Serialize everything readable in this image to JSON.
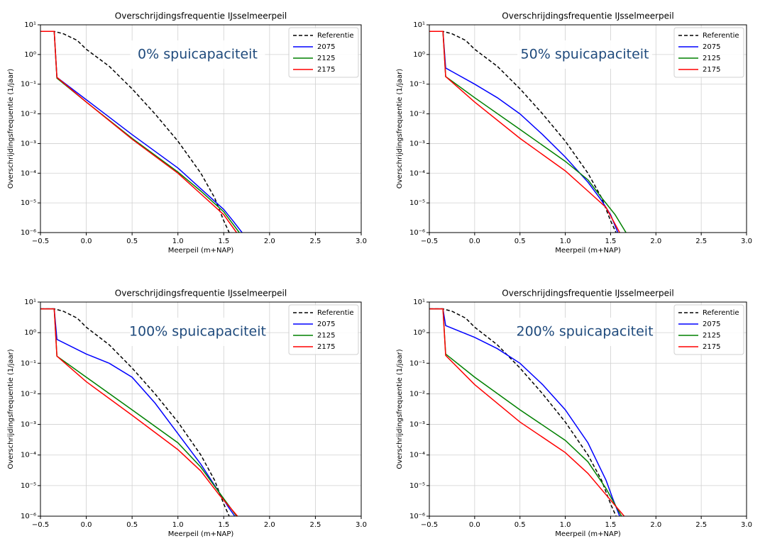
{
  "chart_data": [
    {
      "type": "line",
      "title": "Overschrijdingsfrequentie IJsselmeerpeil",
      "annotation": "0% spuicapaciteit",
      "xlabel": "Meerpeil (m+NAP)",
      "ylabel": "Overschrijdingsfrequentie (1/jaar)",
      "log_y": true,
      "grid": true,
      "legend": "upper right",
      "xlim": [
        -0.5,
        3.0
      ],
      "ylim": [
        1e-06,
        10
      ],
      "xticks": [
        {
          "value": -0.5,
          "label": "−0.5"
        },
        {
          "value": 0,
          "label": "0.0"
        },
        0.5,
        {
          "value": 1,
          "label": "1.0"
        },
        1.5,
        {
          "value": 2,
          "label": "2.0"
        },
        2.5,
        {
          "value": 3,
          "label": "3.0"
        }
      ],
      "yticks": [
        {
          "value": 1e-06,
          "label": "10⁻⁶"
        },
        {
          "value": 1e-05,
          "label": "10⁻⁵"
        },
        {
          "value": 0.0001,
          "label": "10⁻⁴"
        },
        {
          "value": 0.001,
          "label": "10⁻³"
        },
        {
          "value": 0.01,
          "label": "10⁻²"
        },
        {
          "value": 0.1,
          "label": "10⁻¹"
        },
        {
          "value": 1,
          "label": "10⁰"
        },
        {
          "value": 10,
          "label": "10¹"
        }
      ],
      "series": [
        {
          "name": "Referentie",
          "color": "#000000",
          "dashed": true,
          "x": [
            -0.5,
            -0.35,
            -0.25,
            -0.1,
            0,
            0.25,
            0.5,
            0.75,
            1.0,
            1.25,
            1.4,
            1.5,
            1.56
          ],
          "values": [
            6,
            6,
            5,
            3,
            1.5,
            0.4,
            0.07,
            0.01,
            0.0012,
            0.0001,
            1.5e-05,
            2.5e-06,
            1e-06
          ]
        },
        {
          "name": "2075",
          "color": "#0000ff",
          "x": [
            -0.5,
            -0.35,
            -0.32,
            0,
            0.5,
            1.0,
            1.25,
            1.5,
            1.6,
            1.7
          ],
          "values": [
            6,
            6,
            0.17,
            0.03,
            0.002,
            0.00015,
            3e-05,
            6e-06,
            2.5e-06,
            1e-06
          ]
        },
        {
          "name": "2125",
          "color": "#008000",
          "x": [
            -0.5,
            -0.35,
            -0.32,
            0,
            0.5,
            1.0,
            1.25,
            1.5,
            1.67
          ],
          "values": [
            6,
            6,
            0.16,
            0.025,
            0.0015,
            0.00011,
            2.5e-05,
            5e-06,
            1e-06
          ]
        },
        {
          "name": "2175",
          "color": "#ff0000",
          "x": [
            -0.5,
            -0.35,
            -0.32,
            0,
            0.5,
            1.0,
            1.25,
            1.5,
            1.64
          ],
          "values": [
            6,
            6,
            0.17,
            0.025,
            0.0014,
            0.0001,
            2e-05,
            4e-06,
            1e-06
          ]
        }
      ]
    },
    {
      "type": "line",
      "title": "Overschrijdingsfrequentie IJsselmeerpeil",
      "annotation": "50% spuicapaciteit",
      "xlabel": "Meerpeil (m+NAP)",
      "ylabel": "Overschrijdingsfrequentie (1/jaar)",
      "log_y": true,
      "grid": true,
      "legend": "upper right",
      "xlim": [
        -0.5,
        3.0
      ],
      "ylim": [
        1e-06,
        10
      ],
      "xticks": [
        {
          "value": -0.5,
          "label": "−0.5"
        },
        {
          "value": 0,
          "label": "0.0"
        },
        0.5,
        {
          "value": 1,
          "label": "1.0"
        },
        1.5,
        {
          "value": 2,
          "label": "2.0"
        },
        2.5,
        {
          "value": 3,
          "label": "3.0"
        }
      ],
      "yticks": [
        {
          "value": 1e-06,
          "label": "10⁻⁶"
        },
        {
          "value": 1e-05,
          "label": "10⁻⁵"
        },
        {
          "value": 0.0001,
          "label": "10⁻⁴"
        },
        {
          "value": 0.001,
          "label": "10⁻³"
        },
        {
          "value": 0.01,
          "label": "10⁻²"
        },
        {
          "value": 0.1,
          "label": "10⁻¹"
        },
        {
          "value": 1,
          "label": "10⁰"
        },
        {
          "value": 10,
          "label": "10¹"
        }
      ],
      "series": [
        {
          "name": "Referentie",
          "color": "#000000",
          "dashed": true,
          "x": [
            -0.5,
            -0.35,
            -0.25,
            -0.1,
            0,
            0.25,
            0.5,
            0.75,
            1.0,
            1.25,
            1.4,
            1.5,
            1.56
          ],
          "values": [
            6,
            6,
            5,
            3,
            1.5,
            0.4,
            0.07,
            0.01,
            0.0012,
            0.0001,
            1.5e-05,
            2.5e-06,
            1e-06
          ]
        },
        {
          "name": "2075",
          "color": "#0000ff",
          "x": [
            -0.5,
            -0.35,
            -0.32,
            0,
            0.25,
            0.5,
            0.75,
            1.0,
            1.25,
            1.4,
            1.5,
            1.58
          ],
          "values": [
            6,
            6,
            0.35,
            0.1,
            0.035,
            0.01,
            0.002,
            0.00035,
            5e-05,
            1.2e-05,
            4e-06,
            1e-06
          ]
        },
        {
          "name": "2125",
          "color": "#008000",
          "x": [
            -0.5,
            -0.35,
            -0.32,
            0,
            0.5,
            1.0,
            1.25,
            1.4,
            1.55,
            1.67
          ],
          "values": [
            6,
            6,
            0.18,
            0.035,
            0.003,
            0.00025,
            6e-05,
            1.5e-05,
            4e-06,
            1e-06
          ]
        },
        {
          "name": "2175",
          "color": "#ff0000",
          "x": [
            -0.5,
            -0.35,
            -0.32,
            0,
            0.5,
            1.0,
            1.25,
            1.45,
            1.6
          ],
          "values": [
            6,
            6,
            0.18,
            0.025,
            0.0015,
            0.00012,
            2.5e-05,
            7e-06,
            1e-06
          ]
        }
      ]
    },
    {
      "type": "line",
      "title": "Overschrijdingsfrequentie IJsselmeerpeil",
      "annotation": "100% spuicapaciteit",
      "xlabel": "Meerpeil (m+NAP)",
      "ylabel": "Overschrijdingsfrequentie (1/jaar)",
      "log_y": true,
      "grid": true,
      "legend": "upper right",
      "xlim": [
        -0.5,
        3.0
      ],
      "ylim": [
        1e-06,
        10
      ],
      "xticks": [
        {
          "value": -0.5,
          "label": "−0.5"
        },
        {
          "value": 0,
          "label": "0.0"
        },
        0.5,
        {
          "value": 1,
          "label": "1.0"
        },
        1.5,
        {
          "value": 2,
          "label": "2.0"
        },
        2.5,
        {
          "value": 3,
          "label": "3.0"
        }
      ],
      "yticks": [
        {
          "value": 1e-06,
          "label": "10⁻⁶"
        },
        {
          "value": 1e-05,
          "label": "10⁻⁵"
        },
        {
          "value": 0.0001,
          "label": "10⁻⁴"
        },
        {
          "value": 0.001,
          "label": "10⁻³"
        },
        {
          "value": 0.01,
          "label": "10⁻²"
        },
        {
          "value": 0.1,
          "label": "10⁻¹"
        },
        {
          "value": 1,
          "label": "10⁰"
        },
        {
          "value": 10,
          "label": "10¹"
        }
      ],
      "series": [
        {
          "name": "Referentie",
          "color": "#000000",
          "dashed": true,
          "x": [
            -0.5,
            -0.35,
            -0.25,
            -0.1,
            0,
            0.25,
            0.5,
            0.75,
            1.0,
            1.25,
            1.4,
            1.5,
            1.56
          ],
          "values": [
            6,
            6,
            5,
            3,
            1.5,
            0.4,
            0.07,
            0.01,
            0.0012,
            0.0001,
            1.5e-05,
            2.5e-06,
            1e-06
          ]
        },
        {
          "name": "2075",
          "color": "#0000ff",
          "x": [
            -0.5,
            -0.35,
            -0.32,
            0,
            0.25,
            0.5,
            0.75,
            1.0,
            1.25,
            1.45,
            1.55,
            1.62
          ],
          "values": [
            6,
            6,
            0.6,
            0.2,
            0.1,
            0.035,
            0.005,
            0.0005,
            5e-05,
            6e-06,
            2e-06,
            1e-06
          ]
        },
        {
          "name": "2125",
          "color": "#008000",
          "x": [
            -0.5,
            -0.35,
            -0.32,
            0,
            0.5,
            1.0,
            1.25,
            1.45,
            1.64
          ],
          "values": [
            6,
            6,
            0.17,
            0.035,
            0.003,
            0.00025,
            4e-05,
            6e-06,
            1e-06
          ]
        },
        {
          "name": "2175",
          "color": "#ff0000",
          "x": [
            -0.5,
            -0.35,
            -0.32,
            0,
            0.5,
            1.0,
            1.25,
            1.45,
            1.65
          ],
          "values": [
            6,
            6,
            0.17,
            0.025,
            0.002,
            0.00015,
            3e-05,
            5e-06,
            1e-06
          ]
        }
      ]
    },
    {
      "type": "line",
      "title": "Overschrijdingsfrequentie IJsselmeerpeil",
      "annotation": "200% spuicapaciteit",
      "xlabel": "Meerpeil (m+NAP)",
      "ylabel": "Overschrijdingsfrequentie (1/jaar)",
      "log_y": true,
      "grid": true,
      "legend": "upper right",
      "xlim": [
        -0.5,
        3.0
      ],
      "ylim": [
        1e-06,
        10
      ],
      "xticks": [
        {
          "value": -0.5,
          "label": "−0.5"
        },
        {
          "value": 0,
          "label": "0.0"
        },
        0.5,
        {
          "value": 1,
          "label": "1.0"
        },
        1.5,
        {
          "value": 2,
          "label": "2.0"
        },
        2.5,
        {
          "value": 3,
          "label": "3.0"
        }
      ],
      "yticks": [
        {
          "value": 1e-06,
          "label": "10⁻⁶"
        },
        {
          "value": 1e-05,
          "label": "10⁻⁵"
        },
        {
          "value": 0.0001,
          "label": "10⁻⁴"
        },
        {
          "value": 0.001,
          "label": "10⁻³"
        },
        {
          "value": 0.01,
          "label": "10⁻²"
        },
        {
          "value": 0.1,
          "label": "10⁻¹"
        },
        {
          "value": 1,
          "label": "10⁰"
        },
        {
          "value": 10,
          "label": "10¹"
        }
      ],
      "series": [
        {
          "name": "Referentie",
          "color": "#000000",
          "dashed": true,
          "x": [
            -0.5,
            -0.35,
            -0.25,
            -0.1,
            0,
            0.25,
            0.5,
            0.75,
            1.0,
            1.25,
            1.4,
            1.5,
            1.56
          ],
          "values": [
            6,
            6,
            5,
            3,
            1.5,
            0.4,
            0.07,
            0.01,
            0.0012,
            0.0001,
            1.5e-05,
            2.5e-06,
            1e-06
          ]
        },
        {
          "name": "2075",
          "color": "#0000ff",
          "x": [
            -0.5,
            -0.35,
            -0.32,
            0,
            0.25,
            0.5,
            0.75,
            1.0,
            1.25,
            1.45,
            1.52,
            1.6
          ],
          "values": [
            6,
            6,
            1.7,
            0.7,
            0.3,
            0.1,
            0.02,
            0.003,
            0.00025,
            1.5e-05,
            4e-06,
            1e-06
          ]
        },
        {
          "name": "2125",
          "color": "#008000",
          "x": [
            -0.5,
            -0.35,
            -0.32,
            0,
            0.5,
            1.0,
            1.25,
            1.45,
            1.62
          ],
          "values": [
            6,
            6,
            0.2,
            0.035,
            0.003,
            0.0003,
            6e-05,
            8e-06,
            1e-06
          ]
        },
        {
          "name": "2175",
          "color": "#ff0000",
          "x": [
            -0.5,
            -0.35,
            -0.32,
            0,
            0.5,
            1.0,
            1.25,
            1.45,
            1.65
          ],
          "values": [
            6,
            6,
            0.18,
            0.02,
            0.0012,
            0.00012,
            2.5e-05,
            5e-06,
            1e-06
          ]
        }
      ]
    }
  ]
}
